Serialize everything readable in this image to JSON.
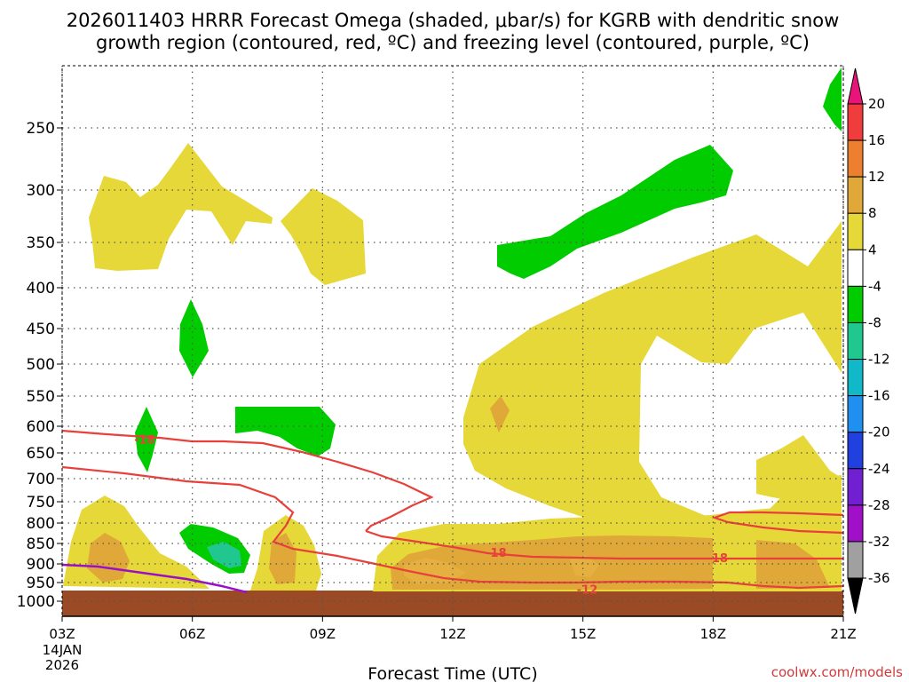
{
  "chart_data": {
    "type": "contour",
    "title_line1": "2026011403 HRRR Forecast Omega (shaded, μbar/s) for KGRB with dendritic snow",
    "title_line2": "growth region (contoured, red, ºC) and freezing level (contoured, purple, ºC)",
    "xlabel": "Forecast Time (UTC)",
    "date_label": [
      "14JAN",
      "2026"
    ],
    "credit": "coolwx.com/models",
    "x_ticks": [
      "03Z",
      "06Z",
      "09Z",
      "12Z",
      "15Z",
      "18Z",
      "21Z"
    ],
    "x_hours": [
      3,
      6,
      9,
      12,
      15,
      18,
      21
    ],
    "y_ticks": [
      "250",
      "300",
      "350",
      "400",
      "450",
      "500",
      "550",
      "600",
      "650",
      "700",
      "750",
      "800",
      "850",
      "900",
      "950",
      "1000"
    ],
    "y_levels_hpa": [
      250,
      300,
      350,
      400,
      450,
      500,
      550,
      600,
      650,
      700,
      750,
      800,
      850,
      900,
      950,
      1000
    ],
    "colorbar": {
      "labels": [
        "20",
        "16",
        "12",
        "8",
        "4",
        "-4",
        "-8",
        "-12",
        "-16",
        "-20",
        "-24",
        "-28",
        "-32",
        "-36"
      ],
      "colors": [
        "#f03c3c",
        "#ec8030",
        "#e0a838",
        "#e6d838",
        "#ffffff",
        "#00cc00",
        "#20c890",
        "#10b8c8",
        "#2090f0",
        "#2040e0",
        "#7020d0",
        "#a010c8",
        "#a0a0a0",
        "#000000"
      ],
      "top_arrow_color": "#e8147a",
      "bottom_arrow_color": "#000000"
    },
    "shading": [
      {
        "name": "omega-positive-4-8",
        "color": "#e6d838",
        "range": "4 to 8 μbar/s"
      },
      {
        "name": "omega-positive-8-12",
        "color": "#e0a838",
        "range": "8 to 12 μbar/s"
      },
      {
        "name": "omega-negative-4-8",
        "color": "#00cc00",
        "range": "-8 to -4 μbar/s"
      },
      {
        "name": "omega-negative-8-12",
        "color": "#20c890",
        "range": "-12 to -8 μbar/s"
      }
    ],
    "contour_labels": [
      {
        "text": "-18",
        "hour": 4.9,
        "hpa": 624
      },
      {
        "text": "-18",
        "hour": 13.0,
        "hpa": 872
      },
      {
        "text": "-18",
        "hour": 18.1,
        "hpa": 885
      },
      {
        "text": "-12",
        "hour": 15.1,
        "hpa": 968
      }
    ],
    "ground_color": "#9a4a25",
    "dendritic_contour_color": "#e8403a",
    "freezing_level_color": "#9a10c8"
  }
}
